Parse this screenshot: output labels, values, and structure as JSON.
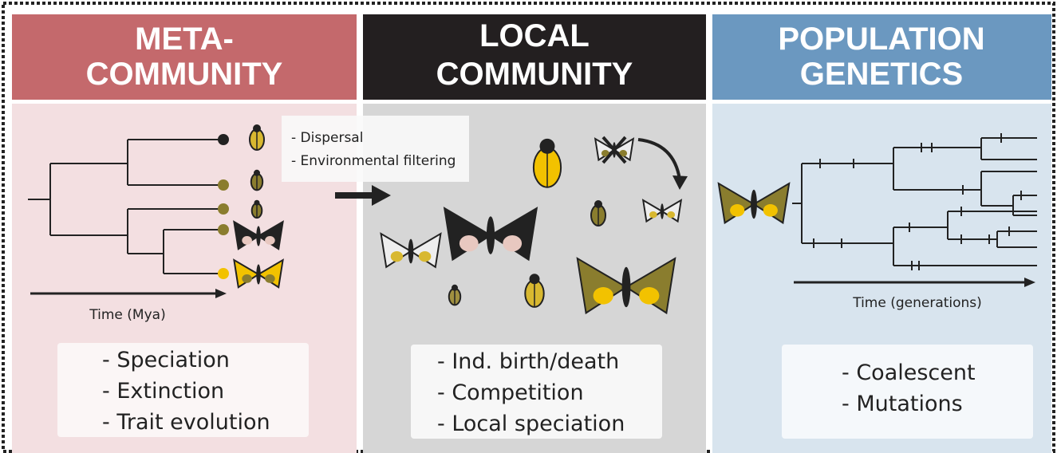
{
  "panels": [
    {
      "title": [
        "META-",
        "COMMUNITY"
      ],
      "axis_label": "Time (Mya)",
      "processes": [
        "- Speciation",
        "- Extinction",
        "- Trait evolution"
      ]
    },
    {
      "title": [
        "LOCAL",
        "COMMUNITY"
      ],
      "processes": [
        "- Ind. birth/death",
        "- Competition",
        "- Local speciation"
      ]
    },
    {
      "title": [
        "POPULATION",
        "GENETICS"
      ],
      "axis_label": "Time (generations)",
      "processes": [
        "- Coalescent",
        "- Mutations"
      ]
    }
  ],
  "filters": [
    "- Dispersal",
    "- Environmental filtering"
  ]
}
